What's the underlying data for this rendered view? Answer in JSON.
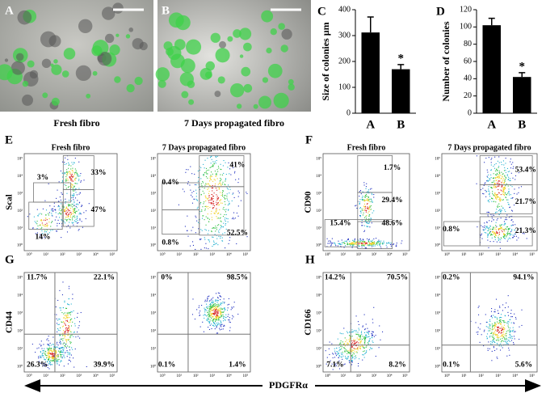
{
  "images": [
    {
      "letter": "A",
      "caption": "Fresh fibro"
    },
    {
      "letter": "B",
      "caption": "7 Days propagated  fibro"
    }
  ],
  "chart_data": [
    {
      "type": "bar",
      "letter": "C",
      "y_label": "Size of colonies µm",
      "categories": [
        "A",
        "B"
      ],
      "values": [
        312,
        170
      ],
      "errors": [
        60,
        18
      ],
      "annotations": [
        "",
        "*"
      ],
      "color": "#000000",
      "ylim": [
        0,
        400
      ],
      "yticks": [
        0,
        100,
        200,
        300,
        400
      ]
    },
    {
      "type": "bar",
      "letter": "D",
      "y_label": "Number of colonies",
      "categories": [
        "A",
        "B"
      ],
      "values": [
        102,
        42
      ],
      "errors": [
        8,
        5
      ],
      "annotations": [
        "",
        "*"
      ],
      "color": "#000000",
      "ylim": [
        0,
        120
      ],
      "yticks": [
        0,
        20,
        40,
        60,
        80,
        100,
        120
      ]
    }
  ],
  "flow": {
    "x_label": "PDGFRα",
    "tick_labels": [
      "10⁰",
      "10¹",
      "10²",
      "10³",
      "10⁴",
      "10⁵"
    ],
    "panels": [
      {
        "letter": "E",
        "y_label": "Scal",
        "titles": [
          "Fresh fibro",
          "7 Days propagated  fibro"
        ],
        "plots": [
          [
            "3%",
            "33%",
            "47%",
            "14%"
          ],
          [
            "0.4%",
            "41%",
            "52.5%",
            "0.8%"
          ]
        ]
      },
      {
        "letter": "F",
        "y_label": "CD90",
        "titles": [
          "Fresh fibro",
          "7 Days propagated  fibro"
        ],
        "plots": [
          [
            "1.7%",
            "29.4%",
            "15.4%",
            "48.6%"
          ],
          [
            "53.4%",
            "21.7%",
            "0.8%",
            "21.3%"
          ]
        ]
      },
      {
        "letter": "G",
        "y_label": "CD44",
        "plots": [
          [
            "11.7%",
            "22.1%",
            "26.3%",
            "39.9%"
          ],
          [
            "0%",
            "98.5%",
            "0.1%",
            "1.4%"
          ]
        ]
      },
      {
        "letter": "H",
        "y_label": "CD166",
        "plots": [
          [
            "14.2%",
            "70.5%",
            "7.1%",
            "8.2%"
          ],
          [
            "0.2%",
            "94.1%",
            "0.1%",
            "5.6%"
          ]
        ]
      }
    ]
  }
}
